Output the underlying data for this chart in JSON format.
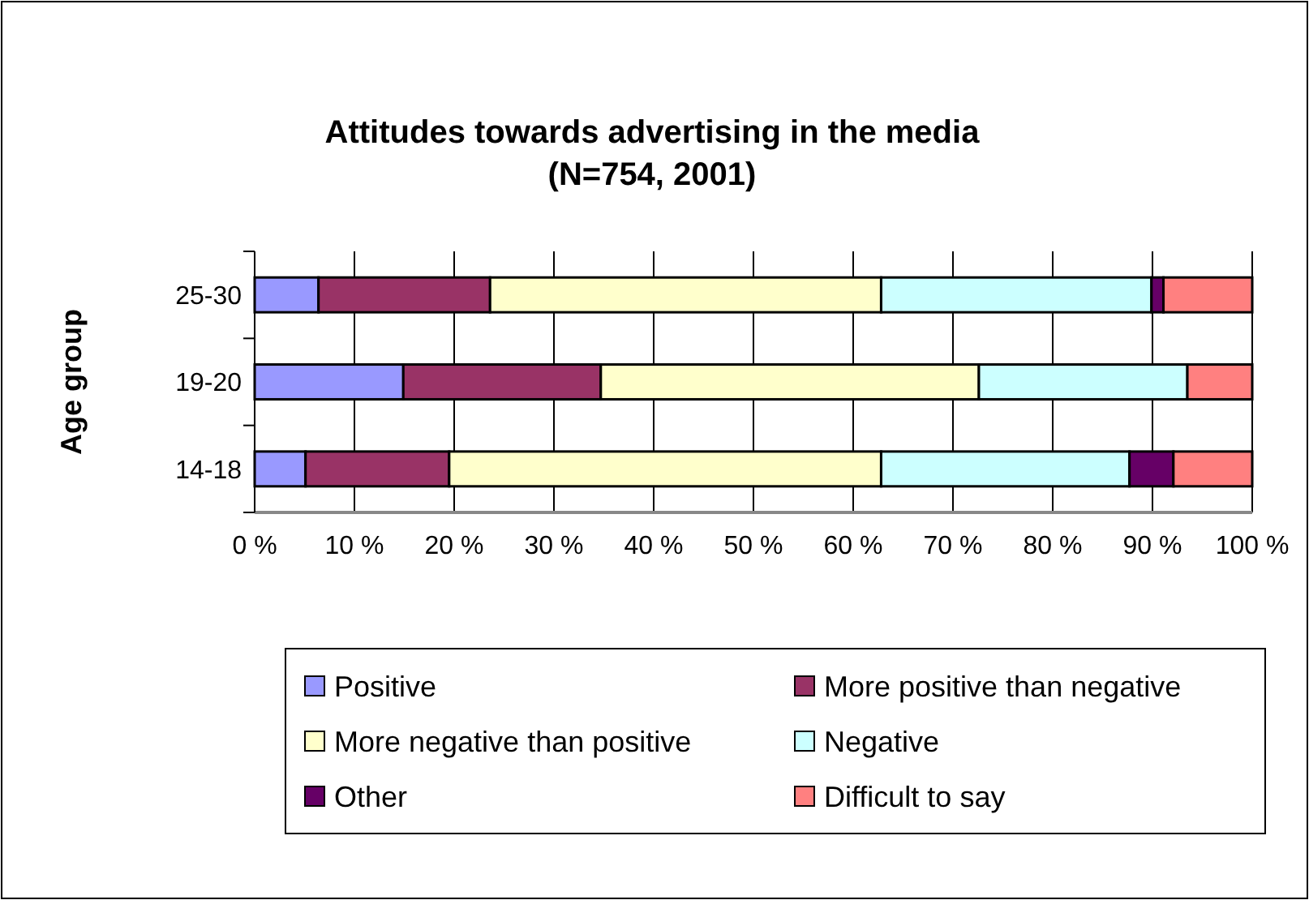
{
  "chart_data": {
    "type": "bar",
    "orientation": "horizontal",
    "stacked": true,
    "title": "Attitudes towards advertising in the media",
    "subtitle": "(N=754, 2001)",
    "ylabel": "Age group",
    "categories": [
      "25-30",
      "19-20",
      "14-18"
    ],
    "series": [
      {
        "name": "Positive",
        "color": "#9999ff",
        "values": [
          6.4,
          14.9,
          5.1
        ]
      },
      {
        "name": "More positive than negative",
        "color": "#993366",
        "values": [
          17.2,
          19.8,
          14.4
        ]
      },
      {
        "name": "More negative than positive",
        "color": "#ffffcc",
        "values": [
          39.2,
          37.9,
          43.3
        ]
      },
      {
        "name": "Negative",
        "color": "#ccffff",
        "values": [
          27.1,
          20.9,
          24.9
        ]
      },
      {
        "name": "Other",
        "color": "#660066",
        "values": [
          1.2,
          0,
          4.4
        ]
      },
      {
        "name": "Difficult to say",
        "color": "#ff8080",
        "values": [
          8.9,
          6.5,
          7.9
        ]
      }
    ],
    "xlim": [
      0,
      100
    ],
    "xticks": [
      {
        "value": 0,
        "label": "0 %"
      },
      {
        "value": 10,
        "label": "10 %"
      },
      {
        "value": 20,
        "label": "20 %"
      },
      {
        "value": 30,
        "label": "30 %"
      },
      {
        "value": 40,
        "label": "40 %"
      },
      {
        "value": 50,
        "label": "50 %"
      },
      {
        "value": 60,
        "label": "60 %"
      },
      {
        "value": 70,
        "label": "70 %"
      },
      {
        "value": 80,
        "label": "80 %"
      },
      {
        "value": 90,
        "label": "90 %"
      },
      {
        "value": 100,
        "label": "100 %"
      }
    ],
    "grid": "x",
    "legend": "bottom"
  }
}
